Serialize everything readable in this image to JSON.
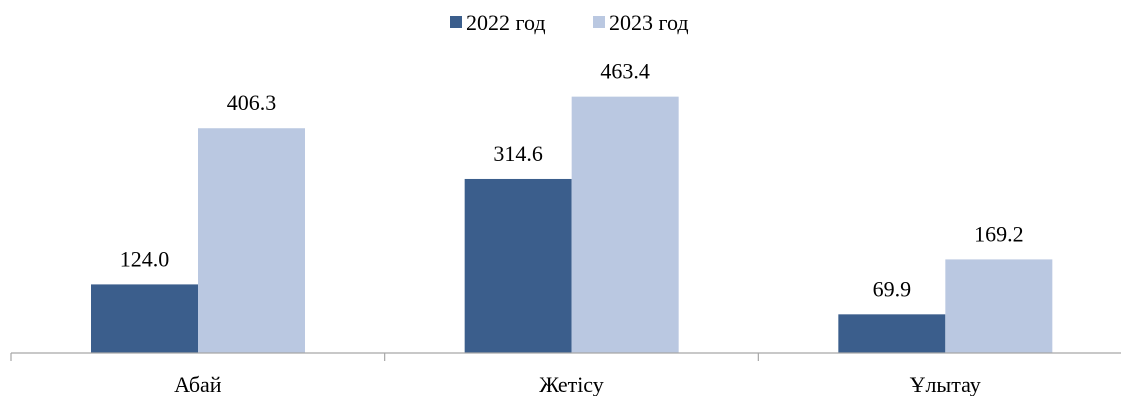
{
  "chart_data": {
    "type": "bar",
    "title": "",
    "xlabel": "",
    "ylabel": "",
    "categories": [
      "Абай",
      "Жетісу",
      "Ұлытау"
    ],
    "series": [
      {
        "name": "2022 год",
        "values": [
          124.0,
          314.6,
          69.9
        ],
        "color": "#3b5e8c"
      },
      {
        "name": "2023 год",
        "values": [
          406.3,
          463.4,
          169.2
        ],
        "color": "#bac8e1"
      }
    ],
    "data_labels": [
      [
        "124.0",
        "314.6",
        "69.9"
      ],
      [
        "406.3",
        "463.4",
        "169.2"
      ]
    ],
    "ylim": [
      0,
      550
    ],
    "y_axis_visible": false,
    "grid": false,
    "legend_position": "top-center"
  }
}
